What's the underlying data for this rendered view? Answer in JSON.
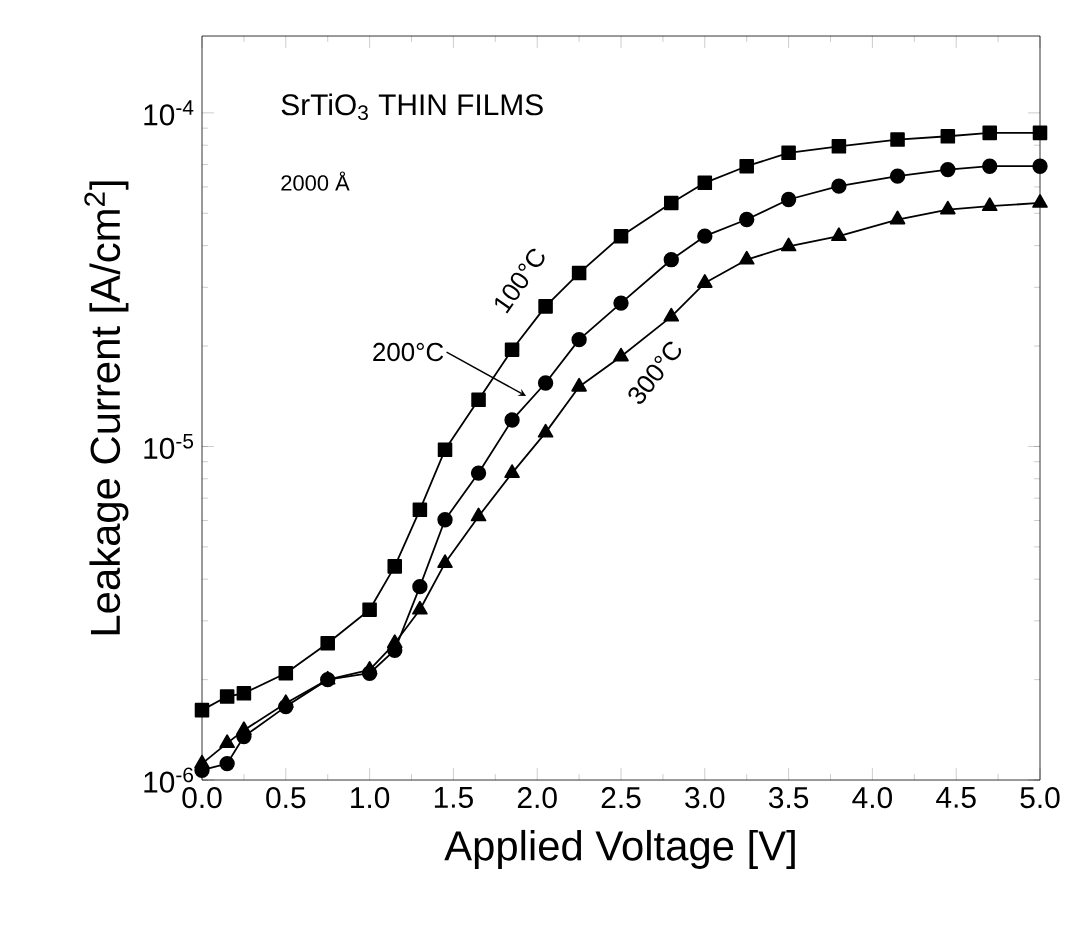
{
  "chart_data": {
    "type": "line",
    "xlabel": "Applied Voltage [V]",
    "ylabel": "Leakage Current [A/cm$^{2}$]",
    "annotations": [
      "SrTiO$_{3}$ THIN FILMS",
      "2000 Å"
    ],
    "x": [
      0,
      0.15,
      0.25,
      0.5,
      0.75,
      1.0,
      1.15,
      1.3,
      1.45,
      1.65,
      1.85,
      2.05,
      2.25,
      2.5,
      2.8,
      3.0,
      3.25,
      3.5,
      3.8,
      4.15,
      4.45,
      4.7,
      5.0
    ],
    "series": [
      {
        "name": "100°C",
        "color": "#000000",
        "marker": "square",
        "values": [
          1.62e-06,
          1.78e-06,
          1.82e-06,
          2.09e-06,
          2.57e-06,
          3.24e-06,
          4.37e-06,
          6.46e-06,
          9.77e-06,
          1.38e-05,
          1.95e-05,
          2.63e-05,
          3.31e-05,
          4.27e-05,
          5.37e-05,
          6.17e-05,
          6.92e-05,
          7.59e-05,
          7.94e-05,
          8.32e-05,
          8.51e-05,
          8.71e-05,
          8.71e-05
        ]
      },
      {
        "name": "200°C",
        "color": "#000000",
        "marker": "circle",
        "values": [
          1.07e-06,
          1.12e-06,
          1.35e-06,
          1.66e-06,
          2e-06,
          2.09e-06,
          2.45e-06,
          3.8e-06,
          6.03e-06,
          8.32e-06,
          1.2e-05,
          1.55e-05,
          2.09e-05,
          2.69e-05,
          3.63e-05,
          4.27e-05,
          4.79e-05,
          5.5e-05,
          6.03e-05,
          6.46e-05,
          6.76e-05,
          6.92e-05,
          6.92e-05
        ]
      },
      {
        "name": "300°C",
        "color": "#000000",
        "marker": "triangle",
        "values": [
          1.12e-06,
          1.29e-06,
          1.41e-06,
          1.7e-06,
          2e-06,
          2.14e-06,
          2.57e-06,
          3.24e-06,
          4.47e-06,
          6.17e-06,
          8.32e-06,
          1.1e-05,
          1.51e-05,
          1.86e-05,
          2.45e-05,
          3.09e-05,
          3.63e-05,
          3.98e-05,
          4.27e-05,
          4.79e-05,
          5.13e-05,
          5.25e-05,
          5.37e-05
        ]
      }
    ],
    "log": "y",
    "xlim": [
      0,
      5
    ],
    "ylim": [
      1e-06,
      0.00017
    ],
    "xticks": [
      {
        "value": 0,
        "label": "0.0"
      },
      {
        "value": 0.5,
        "label": "0.5"
      },
      {
        "value": 1,
        "label": "1.0"
      },
      {
        "value": 1.5,
        "label": "1.5"
      },
      {
        "value": 2,
        "label": "2.0"
      },
      {
        "value": 2.5,
        "label": "2.5"
      },
      {
        "value": 3,
        "label": "3.0"
      },
      {
        "value": 3.5,
        "label": "3.5"
      },
      {
        "value": 4,
        "label": "4.0"
      },
      {
        "value": 4.5,
        "label": "4.5"
      },
      {
        "value": 5,
        "label": "5.0"
      }
    ],
    "yticks": [
      {
        "value": 1e-06,
        "label": "10$^{-6}$"
      },
      {
        "value": 1e-05,
        "label": "10$^{-5}$"
      },
      {
        "value": 0.0001,
        "label": "10$^{-4}$"
      }
    ],
    "grid": false,
    "legend": false,
    "line_style": "solid"
  }
}
